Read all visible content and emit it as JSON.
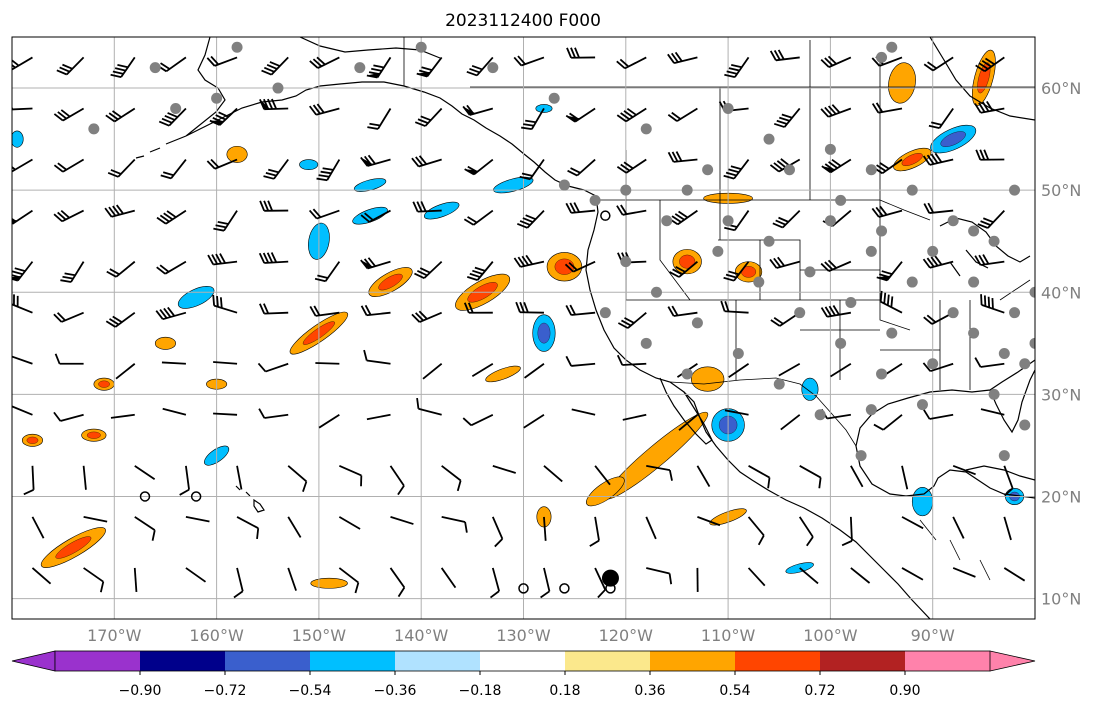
{
  "title": "2023112400 F000",
  "map": {
    "lon_range": [
      -180,
      -80
    ],
    "lat_range": [
      8,
      65
    ],
    "lon_ticks": [
      {
        "v": -170,
        "label": "170°W"
      },
      {
        "v": -160,
        "label": "160°W"
      },
      {
        "v": -150,
        "label": "150°W"
      },
      {
        "v": -140,
        "label": "140°W"
      },
      {
        "v": -130,
        "label": "130°W"
      },
      {
        "v": -120,
        "label": "120°W"
      },
      {
        "v": -110,
        "label": "110°W"
      },
      {
        "v": -100,
        "label": "100°W"
      },
      {
        "v": -90,
        "label": "90°W"
      }
    ],
    "lat_ticks": [
      {
        "v": 60,
        "label": "60°N"
      },
      {
        "v": 50,
        "label": "50°N"
      },
      {
        "v": 40,
        "label": "40°N"
      },
      {
        "v": 30,
        "label": "30°N"
      },
      {
        "v": 20,
        "label": "20°N"
      },
      {
        "v": 10,
        "label": "10°N"
      }
    ],
    "grid": true
  },
  "colorbar": {
    "colors": [
      "#9a32cd",
      "#00008b",
      "#3a5fcd",
      "#00bfff",
      "#b0e2ff",
      "#ffffff",
      "#fbe88c",
      "#ffa500",
      "#ff4500",
      "#b22222",
      "#ff82ab"
    ],
    "under_color": "#9a32cd",
    "over_color": "#ff82ab",
    "tick_labels": [
      "−0.90",
      "−0.72",
      "−0.54",
      "−0.36",
      "−0.18",
      "0.18",
      "0.36",
      "0.54",
      "0.72",
      "0.90"
    ]
  },
  "field_blobs": [
    {
      "lon": -143,
      "lat": 41,
      "rx": 2.4,
      "ry": 0.9,
      "rot": -30,
      "levels": [
        "#ffa500",
        "#ff4500"
      ]
    },
    {
      "lon": -134,
      "lat": 40,
      "rx": 3.0,
      "ry": 1.1,
      "rot": -30,
      "levels": [
        "#ffa500",
        "#ff4500"
      ]
    },
    {
      "lon": -150,
      "lat": 36,
      "rx": 3.4,
      "ry": 0.8,
      "rot": -35,
      "levels": [
        "#ffa500",
        "#ff4500"
      ]
    },
    {
      "lon": -126,
      "lat": 42.5,
      "rx": 1.7,
      "ry": 1.4,
      "rot": 0,
      "levels": [
        "#ffa500",
        "#ff4500"
      ]
    },
    {
      "lon": -117,
      "lat": 24,
      "rx": 6.5,
      "ry": 1.0,
      "rot": -40,
      "levels": [
        "#ffa500"
      ]
    },
    {
      "lon": -122,
      "lat": 20.5,
      "rx": 2.2,
      "ry": 0.8,
      "rot": -35,
      "levels": [
        "#ffa500"
      ]
    },
    {
      "lon": -112,
      "lat": 31.5,
      "rx": 1.6,
      "ry": 1.2,
      "rot": 0,
      "levels": [
        "#ffa500"
      ]
    },
    {
      "lon": -114,
      "lat": 43,
      "rx": 1.4,
      "ry": 1.2,
      "rot": 0,
      "levels": [
        "#ffa500",
        "#ff4500"
      ]
    },
    {
      "lon": -108,
      "lat": 42,
      "rx": 1.3,
      "ry": 1.0,
      "rot": 0,
      "levels": [
        "#ffa500",
        "#ff4500"
      ]
    },
    {
      "lon": -110,
      "lat": 49.2,
      "rx": 2.4,
      "ry": 0.5,
      "rot": 0,
      "levels": [
        "#ffa500"
      ]
    },
    {
      "lon": -92,
      "lat": 53,
      "rx": 2.0,
      "ry": 0.8,
      "rot": -25,
      "levels": [
        "#ffa500",
        "#ff4500"
      ]
    },
    {
      "lon": -93,
      "lat": 60.5,
      "rx": 1.3,
      "ry": 2.0,
      "rot": 10,
      "levels": [
        "#ffa500"
      ]
    },
    {
      "lon": -85,
      "lat": 61,
      "rx": 0.9,
      "ry": 2.8,
      "rot": 15,
      "levels": [
        "#ffa500",
        "#ff4500"
      ]
    },
    {
      "lon": -174,
      "lat": 15,
      "rx": 3.6,
      "ry": 0.9,
      "rot": -30,
      "levels": [
        "#ffa500",
        "#ff4500"
      ]
    },
    {
      "lon": -178,
      "lat": 25.5,
      "rx": 1.0,
      "ry": 0.6,
      "rot": 0,
      "levels": [
        "#ffa500",
        "#ff4500"
      ]
    },
    {
      "lon": -172,
      "lat": 26,
      "rx": 1.2,
      "ry": 0.6,
      "rot": 0,
      "levels": [
        "#ffa500",
        "#ff4500"
      ]
    },
    {
      "lon": -158,
      "lat": 53.5,
      "rx": 1.0,
      "ry": 0.8,
      "rot": 0,
      "levels": [
        "#ffa500"
      ]
    },
    {
      "lon": -165,
      "lat": 35,
      "rx": 1.0,
      "ry": 0.6,
      "rot": 0,
      "levels": [
        "#ffa500"
      ]
    },
    {
      "lon": -171,
      "lat": 31,
      "rx": 1.0,
      "ry": 0.6,
      "rot": 0,
      "levels": [
        "#ffa500",
        "#ff4500"
      ]
    },
    {
      "lon": -160,
      "lat": 31,
      "rx": 1.0,
      "ry": 0.5,
      "rot": 0,
      "levels": [
        "#ffa500"
      ]
    },
    {
      "lon": -132,
      "lat": 32,
      "rx": 1.8,
      "ry": 0.5,
      "rot": -20,
      "levels": [
        "#ffa500"
      ]
    },
    {
      "lon": -128,
      "lat": 18,
      "rx": 0.7,
      "ry": 1.0,
      "rot": 0,
      "levels": [
        "#ffa500"
      ]
    },
    {
      "lon": -110,
      "lat": 18,
      "rx": 1.9,
      "ry": 0.5,
      "rot": -20,
      "levels": [
        "#ffa500"
      ]
    },
    {
      "lon": -149,
      "lat": 11.5,
      "rx": 1.8,
      "ry": 0.5,
      "rot": 0,
      "levels": [
        "#ffa500"
      ]
    },
    {
      "lon": -110,
      "lat": 27,
      "rx": 1.6,
      "ry": 1.6,
      "rot": 0,
      "levels": [
        "#00bfff",
        "#3a5fcd"
      ]
    },
    {
      "lon": -128,
      "lat": 36,
      "rx": 1.1,
      "ry": 1.8,
      "rot": 0,
      "levels": [
        "#00bfff",
        "#3a5fcd"
      ]
    },
    {
      "lon": -150,
      "lat": 45,
      "rx": 1.0,
      "ry": 1.8,
      "rot": 10,
      "levels": [
        "#00bfff"
      ]
    },
    {
      "lon": -138,
      "lat": 48,
      "rx": 1.8,
      "ry": 0.6,
      "rot": -20,
      "levels": [
        "#00bfff"
      ]
    },
    {
      "lon": -145,
      "lat": 47.5,
      "rx": 1.8,
      "ry": 0.6,
      "rot": -20,
      "levels": [
        "#00bfff"
      ]
    },
    {
      "lon": -131,
      "lat": 50.5,
      "rx": 2.0,
      "ry": 0.6,
      "rot": -15,
      "levels": [
        "#00bfff"
      ]
    },
    {
      "lon": -162,
      "lat": 39.5,
      "rx": 1.9,
      "ry": 0.8,
      "rot": -25,
      "levels": [
        "#00bfff"
      ]
    },
    {
      "lon": -145,
      "lat": 50.5,
      "rx": 1.6,
      "ry": 0.5,
      "rot": -15,
      "levels": [
        "#00bfff"
      ]
    },
    {
      "lon": -160,
      "lat": 24,
      "rx": 1.4,
      "ry": 0.6,
      "rot": -35,
      "levels": [
        "#00bfff"
      ]
    },
    {
      "lon": -88,
      "lat": 55,
      "rx": 2.4,
      "ry": 1.0,
      "rot": -25,
      "levels": [
        "#00bfff",
        "#3a5fcd"
      ]
    },
    {
      "lon": -91,
      "lat": 19.5,
      "rx": 1.0,
      "ry": 1.4,
      "rot": 0,
      "levels": [
        "#00bfff"
      ]
    },
    {
      "lon": -82,
      "lat": 20,
      "rx": 0.9,
      "ry": 0.8,
      "rot": 0,
      "levels": [
        "#00bfff",
        "#3a5fcd"
      ]
    },
    {
      "lon": -102,
      "lat": 30.5,
      "rx": 0.8,
      "ry": 1.1,
      "rot": 0,
      "levels": [
        "#00bfff"
      ]
    },
    {
      "lon": -103,
      "lat": 13,
      "rx": 1.4,
      "ry": 0.4,
      "rot": -15,
      "levels": [
        "#00bfff"
      ]
    },
    {
      "lon": -151,
      "lat": 52.5,
      "rx": 0.9,
      "ry": 0.5,
      "rot": 0,
      "levels": [
        "#00bfff"
      ]
    },
    {
      "lon": -179.5,
      "lat": 55,
      "rx": 0.6,
      "ry": 0.8,
      "rot": 0,
      "levels": [
        "#00bfff"
      ]
    },
    {
      "lon": -128,
      "lat": 58,
      "rx": 0.8,
      "ry": 0.4,
      "rot": 0,
      "levels": [
        "#00bfff"
      ]
    }
  ],
  "barb_grid": {
    "lon_step": 5,
    "lat_step": 5
  },
  "station_dots": [
    [
      -118,
      56
    ],
    [
      -110,
      58
    ],
    [
      -106,
      55
    ],
    [
      -100,
      54
    ],
    [
      -96,
      52
    ],
    [
      -92,
      50
    ],
    [
      -88,
      47
    ],
    [
      -84,
      45
    ],
    [
      -112,
      52
    ],
    [
      -104,
      52
    ],
    [
      -99,
      49
    ],
    [
      -95,
      46
    ],
    [
      -90,
      44
    ],
    [
      -86,
      41
    ],
    [
      -82,
      38
    ],
    [
      -80,
      35
    ],
    [
      -116,
      47
    ],
    [
      -111,
      44
    ],
    [
      -107,
      41
    ],
    [
      -103,
      38
    ],
    [
      -99,
      35
    ],
    [
      -95,
      32
    ],
    [
      -91,
      29
    ],
    [
      -120,
      43
    ],
    [
      -117,
      40
    ],
    [
      -113,
      37
    ],
    [
      -109,
      34
    ],
    [
      -105,
      31
    ],
    [
      -101,
      28
    ],
    [
      -97,
      24
    ],
    [
      -122,
      38
    ],
    [
      -118,
      35
    ],
    [
      -114,
      32
    ],
    [
      -106,
      45
    ],
    [
      -102,
      42
    ],
    [
      -98,
      39
    ],
    [
      -94,
      36
    ],
    [
      -90,
      33
    ],
    [
      -84,
      30
    ],
    [
      -88,
      38
    ],
    [
      -92,
      41
    ],
    [
      -96,
      44
    ],
    [
      -100,
      47
    ],
    [
      -110,
      47
    ],
    [
      -114,
      50
    ],
    [
      -127,
      59
    ],
    [
      -133,
      62
    ],
    [
      -140,
      64
    ],
    [
      -158,
      64
    ],
    [
      -164,
      58
    ],
    [
      -160,
      59
    ],
    [
      -172,
      56
    ],
    [
      -166,
      62
    ],
    [
      -154,
      60
    ],
    [
      -146,
      62
    ],
    [
      -123,
      49
    ],
    [
      -126,
      50.5
    ],
    [
      -120,
      50
    ],
    [
      -94,
      64
    ],
    [
      -86,
      36
    ],
    [
      -83,
      34
    ],
    [
      -81,
      33
    ],
    [
      -86,
      46
    ],
    [
      -82,
      50
    ],
    [
      -80,
      40
    ],
    [
      -81,
      27
    ],
    [
      -83,
      24
    ],
    [
      -96,
      28.5
    ],
    [
      -95,
      63
    ]
  ],
  "open_circles": [
    [
      -167,
      20
    ],
    [
      -162,
      20
    ],
    [
      -130,
      11
    ],
    [
      -126,
      11
    ],
    [
      -121.5,
      11
    ],
    [
      -122,
      47.5
    ]
  ],
  "big_dot": [
    -121.5,
    12
  ]
}
